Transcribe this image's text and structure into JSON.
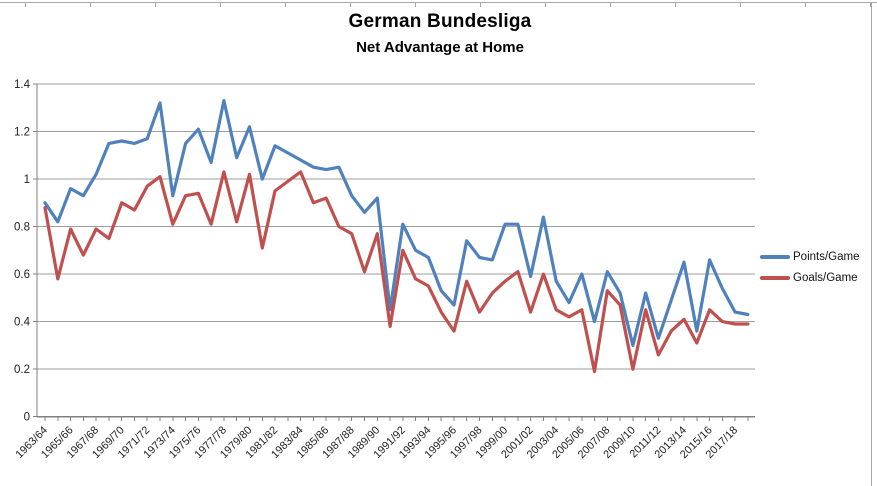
{
  "chart": {
    "title": "German Bundesliga",
    "subtitle": "Net Advantage at Home",
    "colors": {
      "points_line": "#4F81BD",
      "goals_line": "#C0504D",
      "gridline": "#9e9e9e",
      "axis": "#808080",
      "label_text": "#1f1f1f"
    }
  },
  "chart_data": {
    "type": "line",
    "title": "German Bundesliga",
    "subtitle": "Net Advantage at Home",
    "categories": [
      "1963/64",
      "1964/65",
      "1965/66",
      "1966/67",
      "1967/68",
      "1968/69",
      "1969/70",
      "1970/71",
      "1971/72",
      "1972/73",
      "1973/74",
      "1974/75",
      "1975/76",
      "1976/77",
      "1977/78",
      "1978/79",
      "1979/80",
      "1980/81",
      "1981/82",
      "1982/83",
      "1983/84",
      "1984/85",
      "1985/86",
      "1986/87",
      "1987/88",
      "1988/89",
      "1989/90",
      "1990/91",
      "1991/92",
      "1992/93",
      "1993/94",
      "1994/95",
      "1995/96",
      "1996/97",
      "1997/98",
      "1998/99",
      "1999/00",
      "2000/01",
      "2001/02",
      "2002/03",
      "2003/04",
      "2004/05",
      "2005/06",
      "2006/07",
      "2007/08",
      "2008/09",
      "2009/10",
      "2010/11",
      "2011/12",
      "2012/13",
      "2013/14",
      "2014/15",
      "2015/16",
      "2016/17",
      "2017/18",
      "2018/19"
    ],
    "x_labels_every": 2,
    "series": [
      {
        "name": "Points/Game",
        "color": "#4F81BD",
        "values": [
          0.9,
          0.82,
          0.96,
          0.93,
          1.02,
          1.15,
          1.16,
          1.15,
          1.17,
          1.32,
          0.93,
          1.15,
          1.21,
          1.07,
          1.33,
          1.09,
          1.22,
          1.0,
          1.14,
          1.11,
          1.08,
          1.05,
          1.04,
          1.05,
          0.93,
          0.86,
          0.92,
          0.45,
          0.81,
          0.7,
          0.67,
          0.53,
          0.47,
          0.74,
          0.67,
          0.66,
          0.81,
          0.81,
          0.59,
          0.84,
          0.57,
          0.48,
          0.6,
          0.4,
          0.61,
          0.52,
          0.3,
          0.52,
          0.33,
          0.49,
          0.65,
          0.36,
          0.66,
          0.54,
          0.44,
          0.43
        ]
      },
      {
        "name": "Goals/Game",
        "color": "#C0504D",
        "values": [
          0.88,
          0.58,
          0.79,
          0.68,
          0.79,
          0.75,
          0.9,
          0.87,
          0.97,
          1.01,
          0.81,
          0.93,
          0.94,
          0.81,
          1.03,
          0.82,
          1.02,
          0.71,
          0.95,
          0.99,
          1.03,
          0.9,
          0.92,
          0.8,
          0.77,
          0.61,
          0.77,
          0.38,
          0.7,
          0.58,
          0.55,
          0.44,
          0.36,
          0.57,
          0.44,
          0.52,
          0.57,
          0.61,
          0.44,
          0.6,
          0.45,
          0.42,
          0.45,
          0.19,
          0.53,
          0.47,
          0.2,
          0.45,
          0.26,
          0.36,
          0.41,
          0.31,
          0.45,
          0.4,
          0.39,
          0.39
        ]
      }
    ],
    "ylim": [
      0,
      1.4
    ],
    "y_tick_step": 0.2,
    "y_tick_labels": [
      "0",
      "0.2",
      "0.4",
      "0.6",
      "0.8",
      "1",
      "1.2",
      "1.4"
    ],
    "grid": "horizontal",
    "legend_position": "right"
  }
}
